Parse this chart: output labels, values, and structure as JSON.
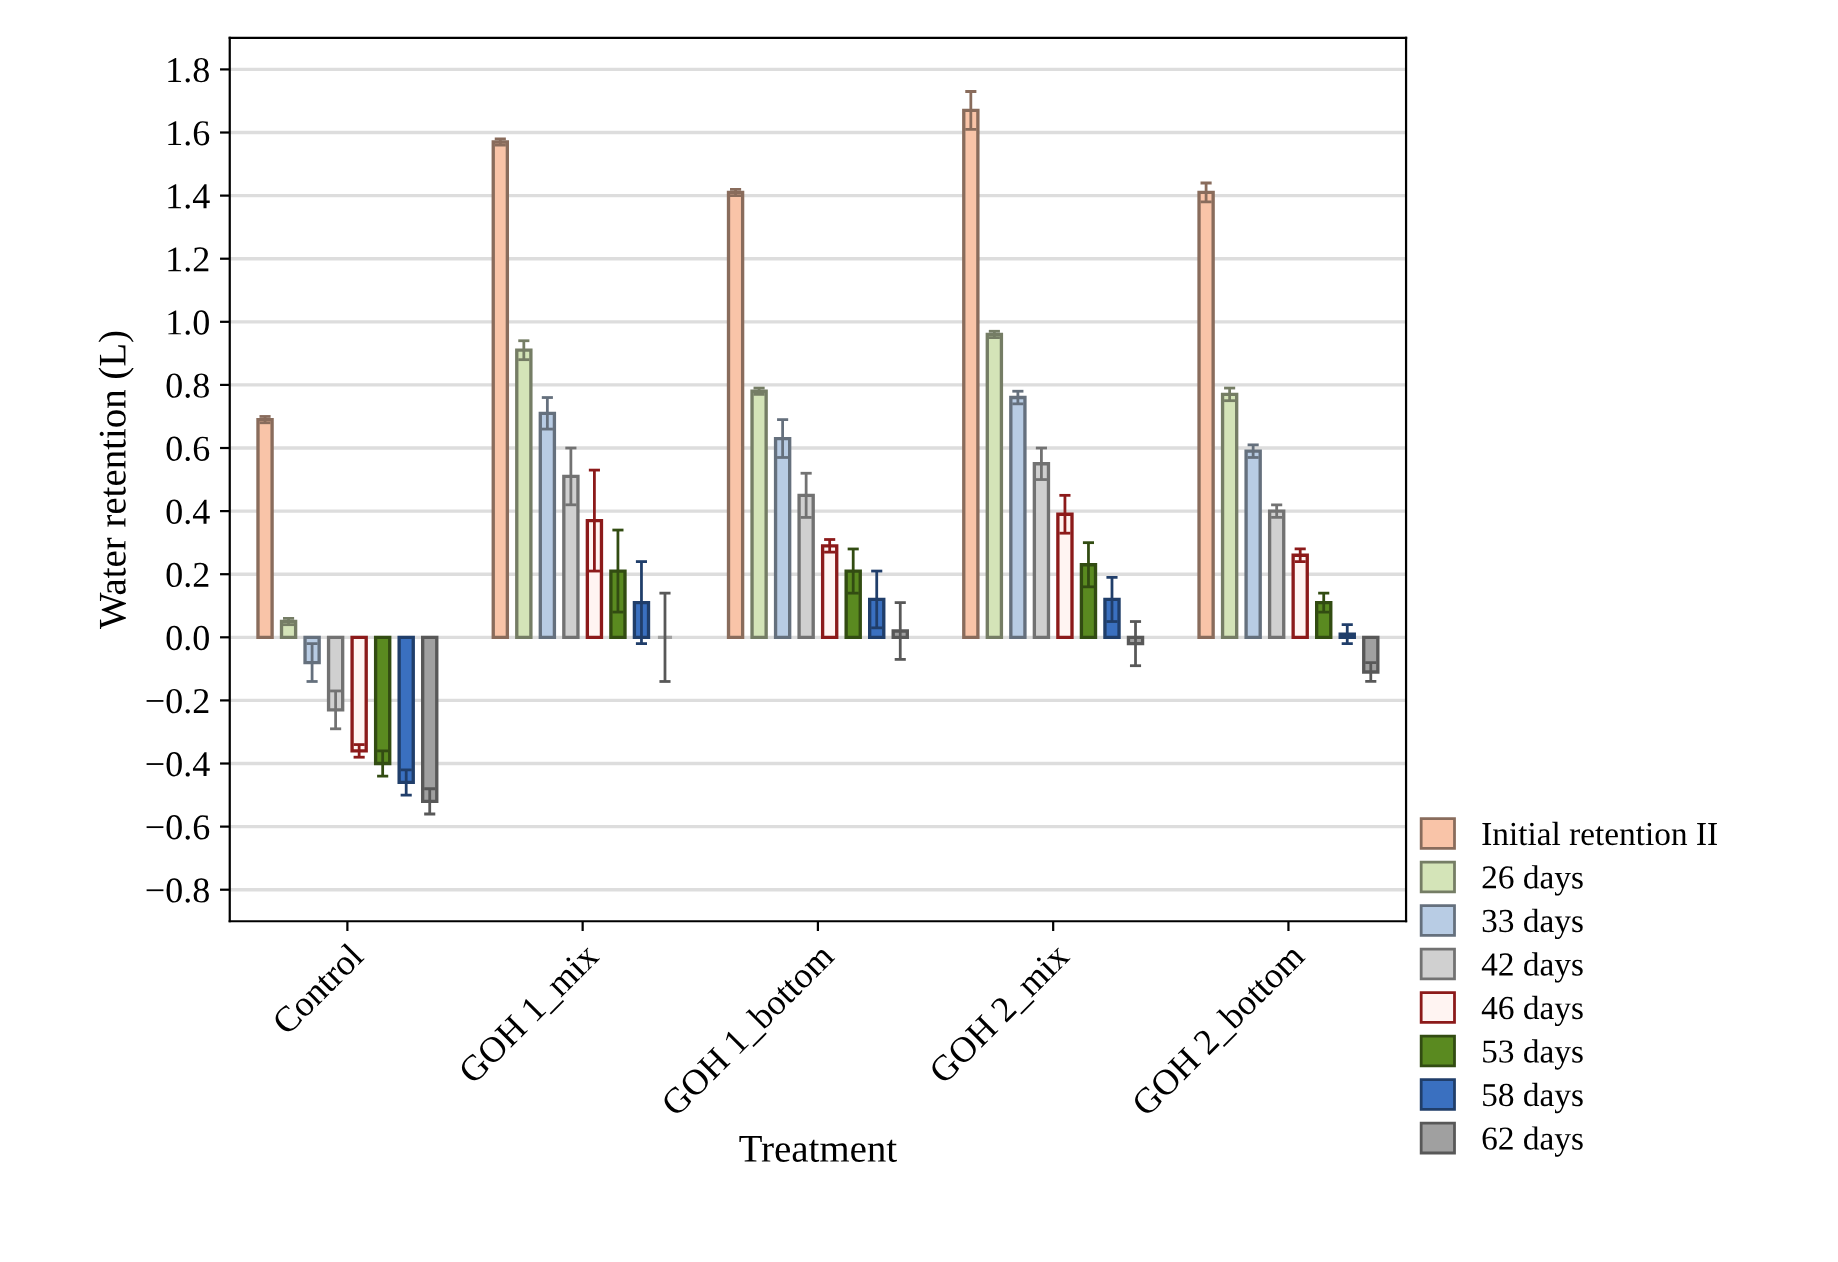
{
  "chart_data": {
    "type": "bar",
    "xlabel": "Treatment",
    "ylabel": "Water retention (L)",
    "categories": [
      "Control",
      "GOH 1_mix",
      "GOH 1_bottom",
      "GOH 2_mix",
      "GOH 2_bottom"
    ],
    "series": [
      {
        "name": "Initial retention II",
        "color": "#f9c4a8",
        "values": [
          0.69,
          1.57,
          1.41,
          1.67,
          1.41
        ],
        "errors": [
          0.01,
          0.01,
          0.01,
          0.06,
          0.03
        ]
      },
      {
        "name": "26 days",
        "color": "#d4e4b8",
        "values": [
          0.05,
          0.91,
          0.78,
          0.96,
          0.77
        ],
        "errors": [
          0.01,
          0.03,
          0.01,
          0.01,
          0.02
        ]
      },
      {
        "name": "33 days",
        "color": "#b8cce4",
        "values": [
          -0.08,
          0.71,
          0.63,
          0.76,
          0.59
        ],
        "errors": [
          0.06,
          0.05,
          0.06,
          0.02,
          0.02
        ]
      },
      {
        "name": "42 days",
        "color": "#d0d0d0",
        "values": [
          -0.23,
          0.51,
          0.45,
          0.55,
          0.4
        ],
        "errors": [
          0.06,
          0.09,
          0.07,
          0.05,
          0.02
        ]
      },
      {
        "name": "46 days",
        "color": "#fff4f2",
        "values": [
          -0.36,
          0.37,
          0.29,
          0.39,
          0.26
        ],
        "errors": [
          0.02,
          0.16,
          0.02,
          0.06,
          0.02
        ]
      },
      {
        "name": "53 days",
        "color": "#5a8a20",
        "values": [
          -0.4,
          0.21,
          0.21,
          0.23,
          0.11
        ],
        "errors": [
          0.04,
          0.13,
          0.07,
          0.07,
          0.03
        ]
      },
      {
        "name": "58 days",
        "color": "#3a70c0",
        "values": [
          -0.46,
          0.11,
          0.12,
          0.12,
          0.01
        ],
        "errors": [
          0.04,
          0.13,
          0.09,
          0.07,
          0.03
        ]
      },
      {
        "name": "62 days",
        "color": "#a0a0a0",
        "values": [
          -0.52,
          0.0,
          0.02,
          -0.02,
          -0.11
        ],
        "errors": [
          0.04,
          0.14,
          0.09,
          0.07,
          0.03
        ]
      }
    ],
    "ylim": [
      -0.9,
      1.9
    ],
    "yticks": [
      {
        "value": -0.8,
        "label": "−0.8"
      },
      {
        "value": -0.6,
        "label": "−0.6"
      },
      {
        "value": -0.4,
        "label": "−0.4"
      },
      {
        "value": -0.2,
        "label": "−0.2"
      },
      {
        "value": 0,
        "label": "0.0"
      },
      {
        "value": 0.2,
        "label": "0.2"
      },
      {
        "value": 0.4,
        "label": "0.4"
      },
      {
        "value": 0.6,
        "label": "0.6"
      },
      {
        "value": 0.8,
        "label": "0.8"
      },
      {
        "value": 1.0,
        "label": "1.0"
      },
      {
        "value": 1.2,
        "label": "1.2"
      },
      {
        "value": 1.4,
        "label": "1.4"
      },
      {
        "value": 1.6,
        "label": "1.6"
      },
      {
        "value": 1.8,
        "label": "1.8"
      }
    ],
    "grid": "y",
    "legend": "bottom right"
  }
}
